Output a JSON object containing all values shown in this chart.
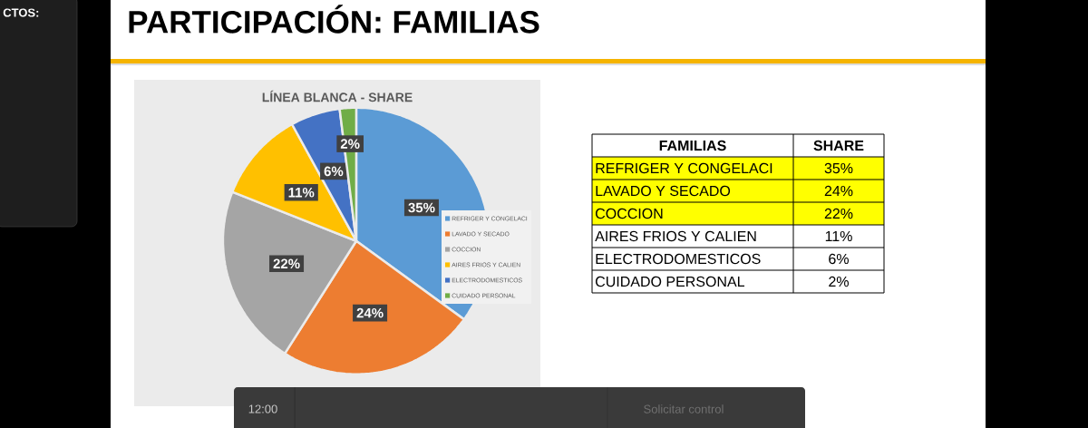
{
  "chart_data": {
    "type": "pie",
    "title": "PARTICIPACIÓN: FAMILIAS",
    "subtitle": "LÍNEA BLANCA - SHARE",
    "categories": [
      "REFRIGER Y CONGELACI",
      "LAVADO Y SECADO",
      "COCCION",
      "AIRES FRIOS Y CALIEN",
      "ELECTRODOMESTICOS",
      "CUIDADO PERSONAL"
    ],
    "values": [
      35,
      24,
      22,
      11,
      6,
      2
    ],
    "value_labels": [
      "35%",
      "24%",
      "22%",
      "11%",
      "6%",
      "2%"
    ],
    "colors": [
      "#5b9bd5",
      "#ed7d31",
      "#a5a5a5",
      "#ffc000",
      "#4472c4",
      "#70ad47"
    ],
    "legend": "right",
    "annotations": [
      "FAMILIAS",
      "SHARE",
      "CTOS:",
      "12:00",
      "Solicitar control"
    ]
  }
}
